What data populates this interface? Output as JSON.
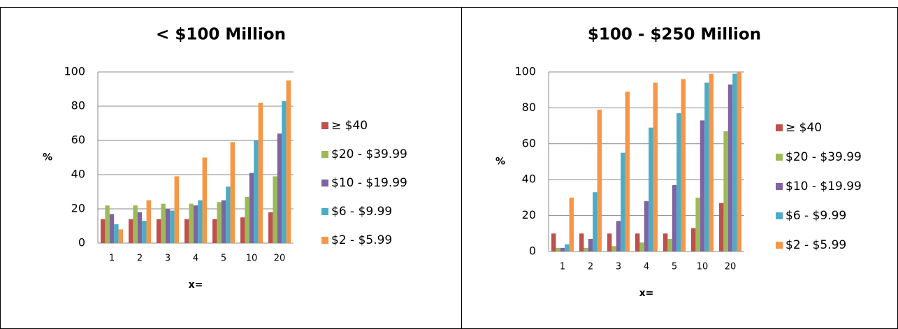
{
  "chart_data": [
    {
      "type": "bar",
      "title": "< $100 Million",
      "y_label": "%",
      "x_label": "x=",
      "categories": [
        "1",
        "2",
        "3",
        "4",
        "5",
        "10",
        "20"
      ],
      "ylim": [
        0,
        100
      ],
      "yticks": [
        0,
        20,
        40,
        60,
        80,
        100
      ],
      "grid": true,
      "series": [
        {
          "name": "≥ $40",
          "color": "#c0504d",
          "values": [
            14,
            14,
            14,
            14,
            14,
            15,
            18
          ]
        },
        {
          "name": "$20 - $39.99",
          "color": "#9bbb59",
          "values": [
            22,
            22,
            23,
            23,
            24,
            27,
            39
          ]
        },
        {
          "name": "$10 - $19.99",
          "color": "#8064a2",
          "values": [
            17,
            18,
            20,
            22,
            25,
            41,
            64
          ]
        },
        {
          "name": "$6 - $9.99",
          "color": "#4bacc6",
          "values": [
            11,
            13,
            19,
            25,
            33,
            60,
            83
          ]
        },
        {
          "name": "$2 - $5.99",
          "color": "#f79646",
          "values": [
            8,
            25,
            39,
            50,
            59,
            82,
            95
          ]
        }
      ]
    },
    {
      "type": "bar",
      "title": "$100 - $250 Million",
      "y_label": "%",
      "x_label": "x=",
      "categories": [
        "1",
        "2",
        "3",
        "4",
        "5",
        "10",
        "20"
      ],
      "ylim": [
        0,
        100
      ],
      "yticks": [
        0,
        20,
        40,
        60,
        80,
        100
      ],
      "grid": true,
      "series": [
        {
          "name": "≥ $40",
          "color": "#c0504d",
          "values": [
            10,
            10,
            10,
            10,
            10,
            13,
            27
          ]
        },
        {
          "name": "$20 - $39.99",
          "color": "#9bbb59",
          "values": [
            2,
            2,
            3,
            5,
            7,
            30,
            67
          ]
        },
        {
          "name": "$10 - $19.99",
          "color": "#8064a2",
          "values": [
            2,
            7,
            17,
            28,
            37,
            73,
            93
          ]
        },
        {
          "name": "$6 - $9.99",
          "color": "#4bacc6",
          "values": [
            4,
            33,
            55,
            69,
            77,
            94,
            99
          ]
        },
        {
          "name": "$2 - $5.99",
          "color": "#f79646",
          "values": [
            30,
            79,
            89,
            94,
            96,
            99,
            100
          ]
        }
      ]
    }
  ]
}
